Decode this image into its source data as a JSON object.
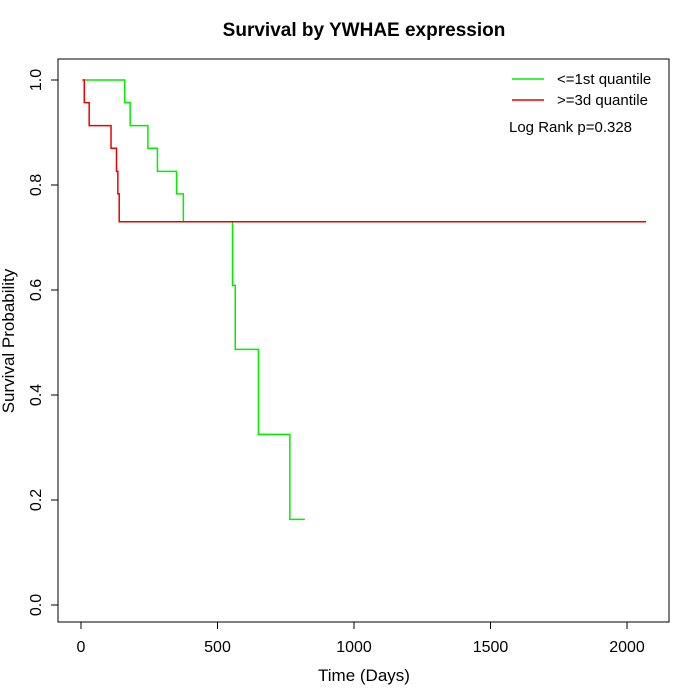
{
  "chart_data": {
    "type": "line",
    "subtype": "kaplan-meier-step",
    "title": "Survival by YWHAE expression",
    "xlabel": "Time (Days)",
    "ylabel": "Survival Probability",
    "xlim": [
      0,
      2070
    ],
    "ylim": [
      0,
      1.0
    ],
    "x_ticks": [
      0,
      500,
      1000,
      1500,
      2000
    ],
    "y_ticks": [
      0.0,
      0.2,
      0.4,
      0.6,
      0.8,
      1.0
    ],
    "x_tick_labels": [
      "0",
      "500",
      "1000",
      "1500",
      "2000"
    ],
    "y_tick_labels": [
      "0.0",
      "0.2",
      "0.4",
      "0.6",
      "0.8",
      "1.0"
    ],
    "legend_position": "top-right",
    "annotation": "Log Rank p=0.328",
    "grid": false,
    "series": [
      {
        "name": "<=1st quantile",
        "color": "#00ee00",
        "steps": [
          [
            10,
            1.0
          ],
          [
            160,
            0.957
          ],
          [
            180,
            0.913
          ],
          [
            245,
            0.87
          ],
          [
            280,
            0.826
          ],
          [
            350,
            0.783
          ],
          [
            375,
            0.73
          ],
          [
            555,
            0.609
          ],
          [
            565,
            0.487
          ],
          [
            650,
            0.325
          ],
          [
            765,
            0.163
          ]
        ],
        "end_x": 820
      },
      {
        "name": ">=3d quantile",
        "color": "#ee0000",
        "steps": [
          [
            5,
            1.0
          ],
          [
            12,
            0.957
          ],
          [
            30,
            0.913
          ],
          [
            110,
            0.87
          ],
          [
            130,
            0.826
          ],
          [
            135,
            0.783
          ],
          [
            140,
            0.73
          ]
        ],
        "end_x": 2070
      }
    ]
  }
}
